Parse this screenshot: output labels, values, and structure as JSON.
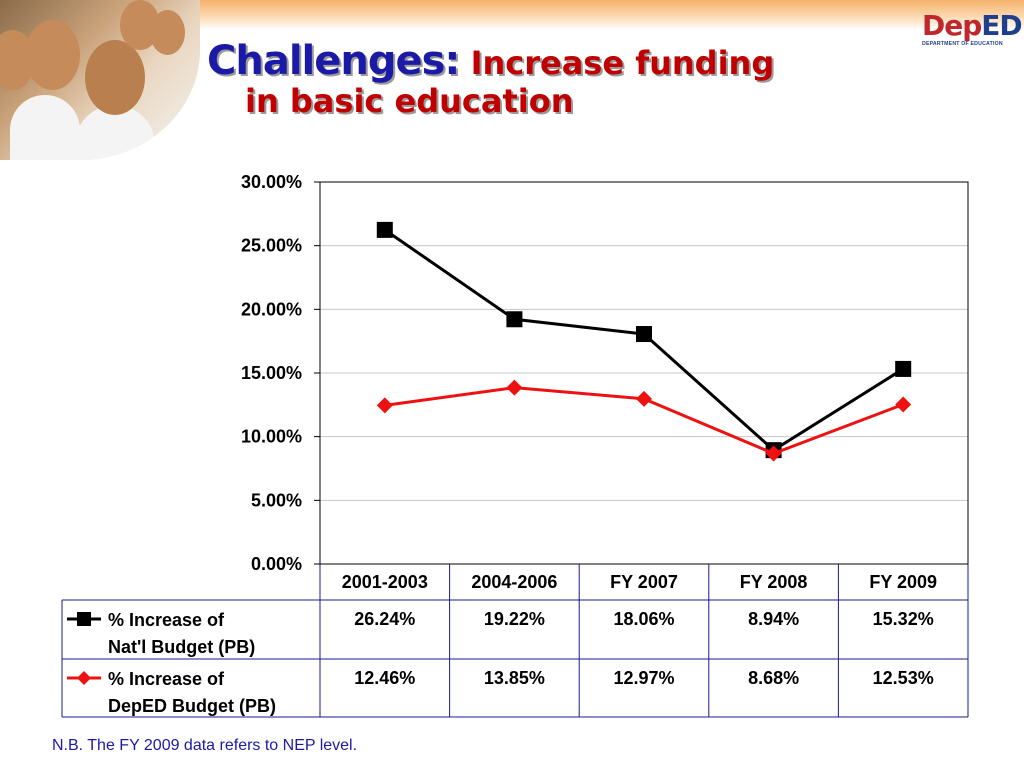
{
  "header": {
    "title_main": "Challenges:",
    "title_accent": "Increase funding",
    "title_line2": "in basic education"
  },
  "logo": {
    "text_dep": "Dep",
    "text_ed": "ED",
    "subtext": "DEPARTMENT OF EDUCATION"
  },
  "footnote": "N.B. The FY 2009 data refers to NEP level.",
  "colors": {
    "title_blue": "#1a1aa6",
    "title_red": "#c00000",
    "series_black": "#000000",
    "series_red": "#ee1111",
    "table_border": "#1a1a8c"
  },
  "chart_data": {
    "type": "line",
    "title": "",
    "xlabel": "",
    "ylabel": "",
    "ylim": [
      0,
      30
    ],
    "y_ticks": [
      "0.00%",
      "5.00%",
      "10.00%",
      "15.00%",
      "20.00%",
      "25.00%",
      "30.00%"
    ],
    "categories": [
      "2001-2003",
      "2004-2006",
      "FY 2007",
      "FY 2008",
      "FY 2009"
    ],
    "grid": true,
    "legend": "data-table-left",
    "series": [
      {
        "name_line1": "% Increase of",
        "name_line2": "Nat'l Budget (PB)",
        "marker": "square",
        "color": "#000000",
        "values": [
          26.24,
          19.22,
          18.06,
          8.94,
          15.32
        ],
        "labels": [
          "26.24%",
          "19.22%",
          "18.06%",
          "8.94%",
          "15.32%"
        ]
      },
      {
        "name_line1": "% Increase of",
        "name_line2": " DepED Budget (PB)",
        "marker": "diamond",
        "color": "#ee1111",
        "values": [
          12.46,
          13.85,
          12.97,
          8.68,
          12.53
        ],
        "labels": [
          "12.46%",
          "13.85%",
          "12.97%",
          "8.68%",
          "12.53%"
        ]
      }
    ]
  }
}
